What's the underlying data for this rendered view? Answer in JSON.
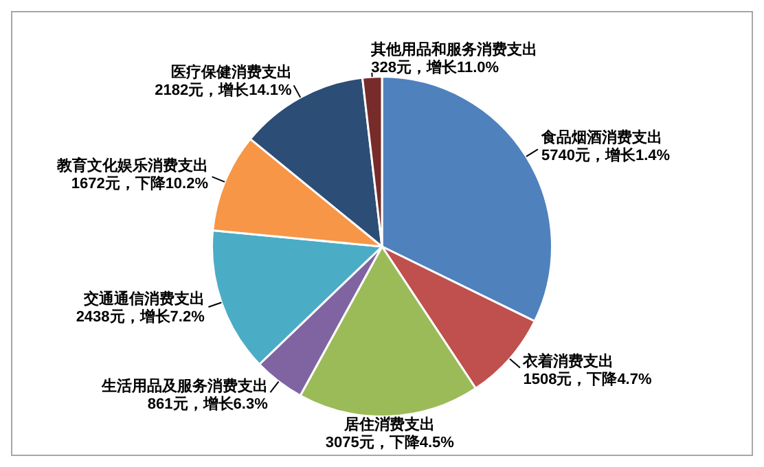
{
  "chart_data": {
    "type": "pie",
    "categories": [
      "食品烟酒消费支出",
      "衣着消费支出",
      "居住消费支出",
      "生活用品及服务消费支出",
      "交通通信消费支出",
      "教育文化娱乐消费支出",
      "医疗保健消费支出",
      "其他用品和服务消费支出"
    ],
    "values": [
      5740,
      1508,
      3075,
      861,
      2438,
      1672,
      2182,
      328
    ],
    "colors": [
      "#4f81bd",
      "#c0504d",
      "#9bbb59",
      "#8064a2",
      "#4bacc6",
      "#f79646",
      "#2c4d75",
      "#772c2a"
    ],
    "value_labels": [
      "5740元，增长1.4%",
      "1508元，下降4.7%",
      "3075元，下降4.5%",
      "861元，增长6.3%",
      "2438元，增长7.2%",
      "1672元，下降10.2%",
      "2182元，增长14.1%",
      "328元，增长11.0%"
    ]
  }
}
